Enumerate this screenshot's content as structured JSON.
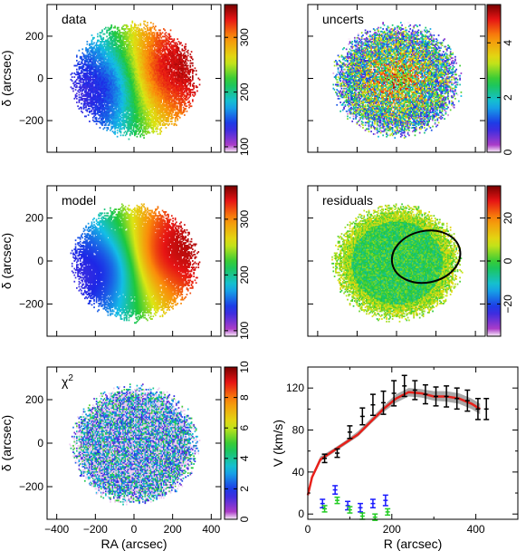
{
  "chart_data": [
    {
      "type": "heatmap",
      "panel_label": "data",
      "ylabel": "δ (arcsec)",
      "xlim": [
        -450,
        450
      ],
      "ylim": [
        -350,
        350
      ],
      "x_ticks": [
        -400,
        -200,
        0,
        200,
        400
      ],
      "y_ticks": [
        "200",
        "0",
        "−200"
      ],
      "colorbar": {
        "range": [
          90,
          360
        ],
        "ticks": [
          "100",
          "200",
          "300"
        ],
        "colormap": "rainbow"
      },
      "show_x_tick_labels": false
    },
    {
      "type": "heatmap",
      "panel_label": "uncerts",
      "ylabel": "",
      "xlim": [
        -450,
        450
      ],
      "ylim": [
        -350,
        350
      ],
      "x_ticks": [
        -400,
        -200,
        0,
        200,
        400
      ],
      "y_ticks": [],
      "colorbar": {
        "range": [
          0,
          5.4
        ],
        "ticks": [
          "0",
          "2",
          "4"
        ],
        "colormap": "rainbow"
      },
      "show_x_tick_labels": false
    },
    {
      "type": "heatmap",
      "panel_label": "model",
      "ylabel": "δ (arcsec)",
      "xlim": [
        -450,
        450
      ],
      "ylim": [
        -350,
        350
      ],
      "x_ticks": [
        -400,
        -200,
        0,
        200,
        400
      ],
      "y_ticks": [
        "200",
        "0",
        "−200"
      ],
      "colorbar": {
        "range": [
          90,
          360
        ],
        "ticks": [
          "100",
          "200",
          "300"
        ],
        "colormap": "rainbow"
      },
      "show_x_tick_labels": false
    },
    {
      "type": "heatmap",
      "panel_label": "residuals",
      "ylabel": "",
      "xlim": [
        -450,
        450
      ],
      "ylim": [
        -350,
        350
      ],
      "x_ticks": [
        -400,
        -200,
        0,
        200,
        400
      ],
      "y_ticks": [],
      "colorbar": {
        "range": [
          -35,
          35
        ],
        "ticks": [
          "−20",
          "0",
          "20"
        ],
        "colormap": "rainbow"
      },
      "ellipse": {
        "center": [
          150,
          20
        ],
        "semi_major": 175,
        "semi_minor": 120,
        "color": "#000000"
      },
      "show_x_tick_labels": false
    },
    {
      "type": "heatmap",
      "panel_label": "χ²",
      "ylabel": "δ (arcsec)",
      "xlabel": "RA (arcsec)",
      "xlim": [
        -450,
        450
      ],
      "ylim": [
        -350,
        350
      ],
      "x_ticks": [
        "−400",
        "−200",
        "0",
        "200",
        "400"
      ],
      "y_ticks": [
        "200",
        "0",
        "−200"
      ],
      "colorbar": {
        "range": [
          0,
          10
        ],
        "ticks": [
          "0",
          "2",
          "4",
          "6",
          "8",
          "10"
        ],
        "colormap": "rainbow"
      },
      "show_x_tick_labels": true
    },
    {
      "type": "line",
      "xlabel": "R (arcsec)",
      "ylabel": "V (km/s)",
      "xlim": [
        0,
        500
      ],
      "ylim": [
        -5,
        140
      ],
      "x_ticks": [
        "0",
        "200",
        "400"
      ],
      "y_ticks": [
        "0",
        "40",
        "80",
        "120"
      ],
      "series": [
        {
          "kind": "model_curve",
          "color": "#e8201a",
          "x": [
            0,
            10,
            30,
            60,
            90,
            120,
            150,
            180,
            210,
            240,
            270,
            300,
            330,
            360,
            390,
            410
          ],
          "y": [
            18,
            35,
            52,
            60,
            68,
            76,
            88,
            100,
            110,
            116,
            115,
            112,
            112,
            110,
            105,
            100
          ]
        },
        {
          "kind": "model_band",
          "color": "#a8a8a8",
          "x": [
            10,
            30,
            60,
            90,
            120,
            150,
            180,
            210,
            240,
            270,
            300,
            330,
            360,
            390,
            410
          ],
          "y_low": [
            33,
            50,
            58,
            66,
            74,
            86,
            97,
            106,
            112,
            111,
            108,
            107,
            105,
            100,
            95
          ],
          "y_high": [
            37,
            55,
            62,
            70,
            79,
            91,
            103,
            114,
            120,
            119,
            117,
            117,
            115,
            110,
            105
          ]
        },
        {
          "kind": "points",
          "color": "#000000",
          "x": [
            40,
            70,
            100,
            130,
            155,
            180,
            205,
            230,
            255,
            280,
            305,
            330,
            355,
            380,
            405,
            425
          ],
          "y": [
            53,
            58,
            78,
            93,
            104,
            106,
            115,
            122,
            118,
            114,
            112,
            112,
            110,
            108,
            100,
            100
          ],
          "err": [
            4,
            4,
            6,
            8,
            10,
            11,
            12,
            10,
            9,
            9,
            9,
            10,
            10,
            10,
            10,
            10
          ]
        },
        {
          "kind": "points",
          "color": "#1a1aff",
          "x": [
            35,
            65,
            95,
            125,
            155,
            185
          ],
          "y": [
            10,
            23,
            8,
            6,
            10,
            13
          ],
          "err": [
            4,
            4,
            4,
            4,
            4,
            5
          ]
        },
        {
          "kind": "points",
          "color": "#22cc22",
          "x": [
            40,
            70,
            100,
            130,
            160,
            190
          ],
          "y": [
            5,
            13,
            4,
            -2,
            -3,
            2
          ],
          "err": [
            3,
            3,
            3,
            3,
            3,
            3
          ]
        }
      ]
    }
  ]
}
